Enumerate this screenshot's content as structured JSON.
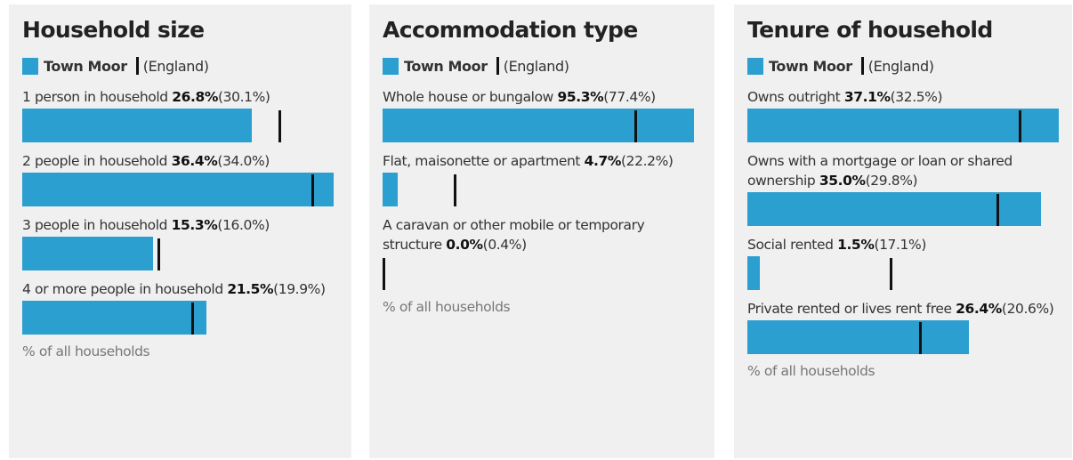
{
  "chart_data": [
    {
      "type": "bar",
      "title": "Household size",
      "note": "% of all households",
      "categories": [
        "1 person in household",
        "2 people in household",
        "3 people in household",
        "4 or more people in household"
      ],
      "xlim": [
        0,
        36.4
      ],
      "series": [
        {
          "name": "Town Moor",
          "color": "#2a9fd0",
          "values": [
            26.8,
            36.4,
            15.3,
            21.5
          ],
          "value_labels": [
            "26.8%",
            "36.4%",
            "15.3%",
            "21.5%"
          ]
        },
        {
          "name": "(England)",
          "color": "#111111",
          "values": [
            30.1,
            34.0,
            16.0,
            19.9
          ],
          "value_labels": [
            "(30.1%)",
            "(34.0%)",
            "(16.0%)",
            "(19.9%)"
          ]
        }
      ]
    },
    {
      "type": "bar",
      "title": "Accommodation type",
      "note": "% of all households",
      "categories": [
        "Whole house or bungalow",
        "Flat, maisonette or apartment",
        "A caravan or other mobile or temporary structure"
      ],
      "xlim": [
        0,
        95.3
      ],
      "series": [
        {
          "name": "Town Moor",
          "color": "#2a9fd0",
          "values": [
            95.3,
            4.7,
            0.0
          ],
          "value_labels": [
            "95.3%",
            "4.7%",
            "0.0%"
          ]
        },
        {
          "name": "(England)",
          "color": "#111111",
          "values": [
            77.4,
            22.2,
            0.4
          ],
          "value_labels": [
            "(77.4%)",
            "(22.2%)",
            "(0.4%)"
          ]
        }
      ]
    },
    {
      "type": "bar",
      "title": "Tenure of household",
      "note": "% of all households",
      "categories": [
        "Owns outright",
        "Owns with a mortgage or loan or shared ownership",
        "Social rented",
        "Private rented or lives rent free"
      ],
      "xlim": [
        0,
        37.1
      ],
      "series": [
        {
          "name": "Town Moor",
          "color": "#2a9fd0",
          "values": [
            37.1,
            35.0,
            1.5,
            26.4
          ],
          "value_labels": [
            "37.1%",
            "35.0%",
            "1.5%",
            "26.4%"
          ]
        },
        {
          "name": "(England)",
          "color": "#111111",
          "values": [
            32.5,
            29.8,
            17.1,
            20.6
          ],
          "value_labels": [
            "(32.5%)",
            "(29.8%)",
            "(17.1%)",
            "(20.6%)"
          ]
        }
      ]
    }
  ]
}
